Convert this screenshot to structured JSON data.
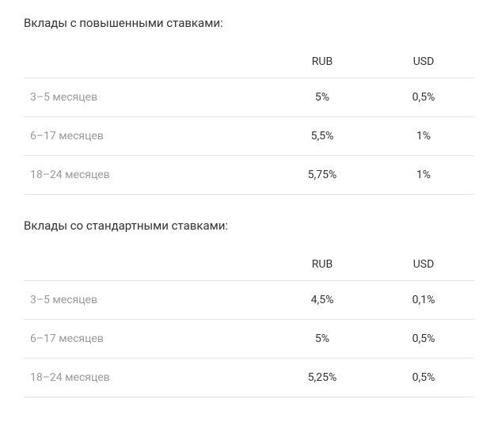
{
  "sections": [
    {
      "title": "Вклады с повышенными ставками:",
      "columns": [
        "",
        "RUB",
        "USD"
      ],
      "rows": [
        [
          "3–5 месяцев",
          "5%",
          "0,5%"
        ],
        [
          "6–17 месяцев",
          "5,5%",
          "1%"
        ],
        [
          "18–24 месяцев",
          "5,75%",
          "1%"
        ]
      ]
    },
    {
      "title": "Вклады со стандартными ставками:",
      "columns": [
        "",
        "RUB",
        "USD"
      ],
      "rows": [
        [
          "3–5 месяцев",
          "4,5%",
          "0,1%"
        ],
        [
          "6–17 месяцев",
          "5%",
          "0,5%"
        ],
        [
          "18–24 месяцев",
          "5,25%",
          "0,5%"
        ]
      ]
    }
  ],
  "styling": {
    "background_color": "#ffffff",
    "title_color": "#333333",
    "header_text_color": "#333333",
    "label_text_color": "#999999",
    "value_text_color": "#333333",
    "border_color": "#e5e5e5",
    "title_fontsize": 15,
    "cell_fontsize": 14,
    "font_family": "-apple-system, BlinkMacSystemFont, Segoe UI, Roboto, Arial, sans-serif"
  }
}
